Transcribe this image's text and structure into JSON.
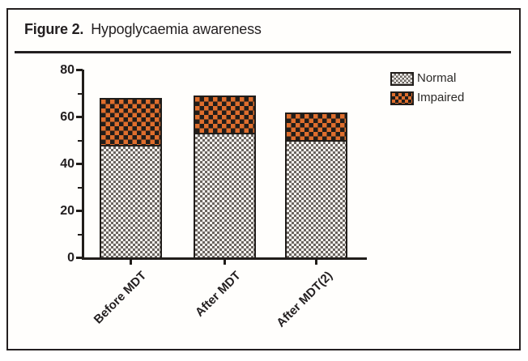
{
  "figure": {
    "label": "Figure 2.",
    "title": "Hypoglycaemia awareness"
  },
  "chart_data": {
    "type": "bar",
    "stacked": true,
    "title": "Hypoglycaemia awareness",
    "categories": [
      "Before MDT",
      "After MDT",
      "After MDT(2)"
    ],
    "series": [
      {
        "name": "Normal",
        "values": [
          48,
          53,
          50
        ],
        "fill": "#f5f3f0",
        "pattern": "gray-checkerboard",
        "pattern_color": "#6b6560"
      },
      {
        "name": "Impaired",
        "values": [
          20,
          16,
          12
        ],
        "fill": "#df6e2d",
        "pattern": "black-checkerboard",
        "pattern_color": "#211d1a"
      }
    ],
    "totals": [
      68,
      69,
      62
    ],
    "xlabel": "",
    "ylabel": "",
    "ylim": [
      0,
      80
    ],
    "y_major_ticks": [
      0,
      20,
      40,
      60,
      80
    ],
    "y_minor_ticks": [
      10,
      30,
      50,
      70
    ],
    "grid": false,
    "legend_position": "top-right"
  },
  "colors": {
    "axis": "#211d1a",
    "text": "#231f20",
    "impaired_orange": "#df6e2d",
    "normal_gray": "#6b6560",
    "panel_border": "#231f20"
  }
}
